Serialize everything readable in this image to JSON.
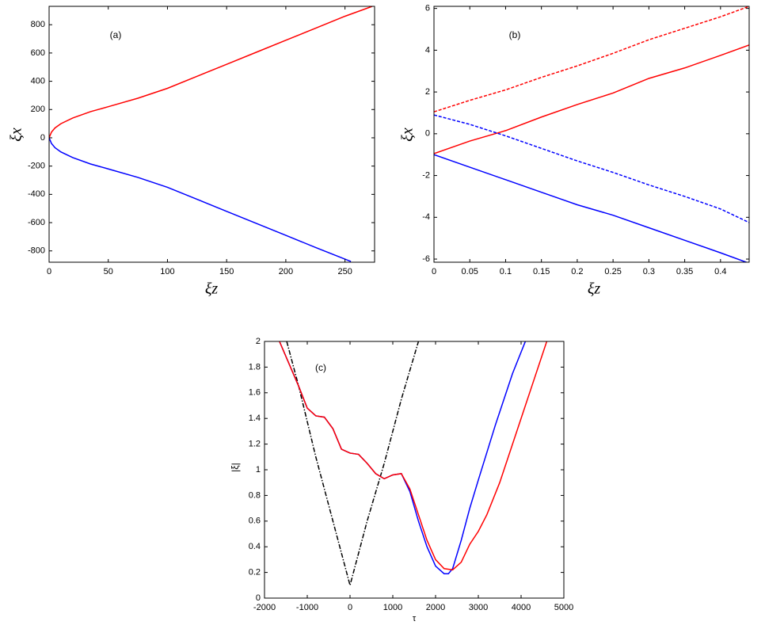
{
  "chart_data": [
    {
      "type": "line",
      "annotation": "(a)",
      "x_label": "ξz",
      "y_label": "ξx",
      "xlim": [
        0,
        275
      ],
      "xticks": [
        0,
        50,
        100,
        150,
        200,
        250
      ],
      "ylim": [
        -880,
        930
      ],
      "yticks": [
        -800,
        -600,
        -400,
        -200,
        0,
        200,
        400,
        600,
        800
      ],
      "series": [
        {
          "color": "#ff0000",
          "style": "solid",
          "x": [
            0,
            2,
            5,
            10,
            20,
            35,
            50,
            75,
            100,
            125,
            150,
            175,
            200,
            225,
            250,
            273
          ],
          "values": [
            0,
            40,
            70,
            100,
            140,
            185,
            220,
            280,
            350,
            435,
            520,
            605,
            690,
            775,
            860,
            930
          ]
        },
        {
          "color": "#0000ff",
          "style": "solid",
          "x": [
            0,
            2,
            5,
            10,
            20,
            35,
            50,
            75,
            100,
            125,
            150,
            175,
            200,
            225,
            255
          ],
          "values": [
            0,
            -40,
            -70,
            -100,
            -140,
            -185,
            -220,
            -280,
            -350,
            -435,
            -520,
            -605,
            -690,
            -775,
            -875
          ]
        }
      ]
    },
    {
      "type": "line",
      "annotation": "(b)",
      "x_label": "ξz",
      "y_label": "ξx",
      "xlim": [
        0,
        0.44
      ],
      "xticks": [
        0,
        0.05,
        0.1,
        0.15,
        0.2,
        0.25,
        0.3,
        0.35,
        0.4
      ],
      "ylim": [
        -6.15,
        6.1
      ],
      "yticks": [
        -6,
        -4,
        -2,
        0,
        2,
        4,
        6
      ],
      "series": [
        {
          "color": "#ff0000",
          "style": "solid",
          "x": [
            0,
            0.05,
            0.1,
            0.15,
            0.2,
            0.25,
            0.3,
            0.35,
            0.4,
            0.44
          ],
          "values": [
            -0.95,
            -0.35,
            0.15,
            0.8,
            1.4,
            1.95,
            2.65,
            3.15,
            3.75,
            4.25
          ]
        },
        {
          "color": "#ff0000",
          "style": "dashed",
          "x": [
            0,
            0.05,
            0.1,
            0.15,
            0.2,
            0.25,
            0.3,
            0.35,
            0.4,
            0.44
          ],
          "values": [
            1.05,
            1.6,
            2.1,
            2.7,
            3.25,
            3.85,
            4.5,
            5.05,
            5.6,
            6.1
          ]
        },
        {
          "color": "#0000ff",
          "style": "dashed",
          "x": [
            0,
            0.05,
            0.1,
            0.15,
            0.2,
            0.25,
            0.3,
            0.35,
            0.4,
            0.44
          ],
          "values": [
            0.9,
            0.45,
            -0.1,
            -0.7,
            -1.3,
            -1.85,
            -2.45,
            -3.0,
            -3.6,
            -4.25
          ]
        },
        {
          "color": "#0000ff",
          "style": "solid",
          "x": [
            0,
            0.05,
            0.1,
            0.15,
            0.2,
            0.25,
            0.3,
            0.35,
            0.4,
            0.44
          ],
          "values": [
            -1,
            -1.6,
            -2.2,
            -2.8,
            -3.4,
            -3.9,
            -4.5,
            -5.1,
            -5.7,
            -6.2
          ]
        }
      ]
    },
    {
      "type": "line",
      "annotation": "(c)",
      "x_label": "τ",
      "y_label": "|ξ|",
      "xlim": [
        -2000,
        5000
      ],
      "xticks": [
        -2000,
        -1000,
        0,
        1000,
        2000,
        3000,
        4000,
        5000
      ],
      "ylim": [
        0,
        2
      ],
      "yticks": [
        0,
        0.2,
        0.4,
        0.6,
        0.8,
        1,
        1.2,
        1.4,
        1.6,
        1.8,
        2
      ],
      "series": [
        {
          "color": "#000000",
          "style": "dashdot",
          "x": [
            -1480,
            -1200,
            -800,
            -400,
            0,
            400,
            800,
            1200,
            1600
          ],
          "values": [
            2.0,
            1.65,
            1.1,
            0.6,
            0.1,
            0.6,
            1.05,
            1.55,
            2.0
          ]
        },
        {
          "color": "#0000ff",
          "style": "solid",
          "x": [
            -1650,
            -1200,
            -1000,
            -800,
            -600,
            -400,
            -200,
            0,
            200,
            400,
            600,
            800,
            1000,
            1200,
            1400,
            1600,
            1800,
            2000,
            2200,
            2300,
            2400,
            2600,
            2800,
            3000,
            3400,
            3800,
            4100
          ],
          "values": [
            2.0,
            1.65,
            1.48,
            1.42,
            1.41,
            1.32,
            1.16,
            1.13,
            1.12,
            1.05,
            0.97,
            0.93,
            0.96,
            0.97,
            0.83,
            0.6,
            0.4,
            0.25,
            0.19,
            0.19,
            0.23,
            0.45,
            0.7,
            0.92,
            1.35,
            1.75,
            2.0
          ]
        },
        {
          "color": "#ff0000",
          "style": "solid",
          "x": [
            -1650,
            -1200,
            -1000,
            -800,
            -600,
            -400,
            -200,
            0,
            200,
            400,
            600,
            800,
            1000,
            1200,
            1400,
            1600,
            1800,
            2000,
            2200,
            2400,
            2600,
            2800,
            3000,
            3200,
            3500,
            3800,
            4200,
            4600
          ],
          "values": [
            2.0,
            1.65,
            1.48,
            1.42,
            1.41,
            1.32,
            1.16,
            1.13,
            1.12,
            1.05,
            0.97,
            0.93,
            0.96,
            0.97,
            0.85,
            0.65,
            0.45,
            0.3,
            0.23,
            0.22,
            0.28,
            0.42,
            0.52,
            0.65,
            0.9,
            1.2,
            1.6,
            2.0
          ]
        }
      ]
    }
  ]
}
